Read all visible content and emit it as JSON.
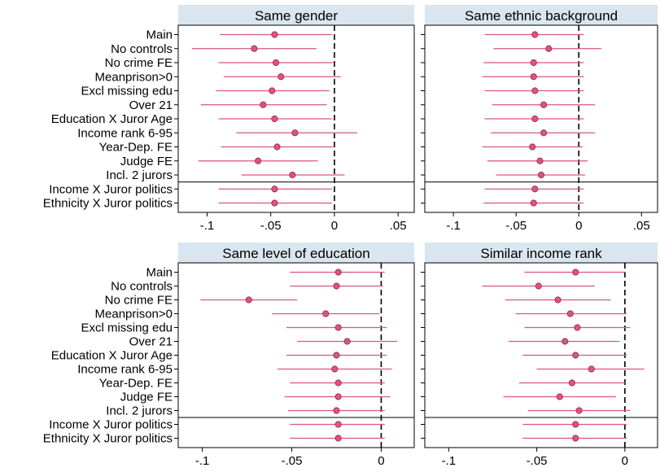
{
  "row_labels": [
    "Main",
    "No controls",
    "No crime FE",
    "Meanprison>0",
    "Excl missing edu",
    "Over 21",
    "Education X Juror Age",
    "Income rank 6-95",
    "Year-Dep. FE",
    "Judge FE",
    "Incl. 2 jurors",
    "Income X Juror politics",
    "Ethnicity X Juror politics"
  ],
  "colors": {
    "point": "#d9577c",
    "point_stroke": "#a8304f",
    "ci": "#d9577c",
    "header_bg": "#d9e6ef",
    "zero_line": "#000000",
    "sep_line": "#000000"
  },
  "chart_data": [
    {
      "type": "scatter",
      "title": "Same gender",
      "xlim": [
        -0.115,
        0.055
      ],
      "xticks": [
        -0.1,
        -0.05,
        0,
        0.05
      ],
      "xtick_labels": [
        "-.1",
        "-.05",
        "0",
        ".05"
      ],
      "estimates": [
        -0.047,
        -0.063,
        -0.046,
        -0.042,
        -0.049,
        -0.056,
        -0.047,
        -0.031,
        -0.045,
        -0.06,
        -0.033,
        -0.047,
        -0.047
      ],
      "ci_low": [
        -0.09,
        -0.112,
        -0.091,
        -0.087,
        -0.093,
        -0.105,
        -0.091,
        -0.077,
        -0.089,
        -0.107,
        -0.073,
        -0.091,
        -0.091
      ],
      "ci_high": [
        -0.002,
        -0.014,
        -0.001,
        0.005,
        -0.004,
        -0.006,
        -0.002,
        0.018,
        -0.001,
        -0.013,
        0.008,
        -0.002,
        -0.002
      ]
    },
    {
      "type": "scatter",
      "title": "Same ethnic background",
      "xlim": [
        -0.115,
        0.055
      ],
      "xticks": [
        -0.1,
        -0.05,
        0,
        0.05
      ],
      "xtick_labels": [
        "-.1",
        "-.05",
        "0",
        ".05"
      ],
      "estimates": [
        -0.035,
        -0.024,
        -0.036,
        -0.036,
        -0.035,
        -0.028,
        -0.035,
        -0.028,
        -0.037,
        -0.031,
        -0.03,
        -0.035,
        -0.036
      ],
      "ci_low": [
        -0.075,
        -0.068,
        -0.076,
        -0.077,
        -0.075,
        -0.069,
        -0.075,
        -0.07,
        -0.077,
        -0.073,
        -0.066,
        -0.075,
        -0.076
      ],
      "ci_high": [
        0.004,
        0.018,
        0.004,
        0.004,
        0.004,
        0.013,
        0.004,
        0.013,
        0.003,
        0.007,
        0.005,
        0.004,
        0.004
      ]
    },
    {
      "type": "scatter",
      "title": "Same level of education",
      "xlim": [
        -0.108,
        0.013
      ],
      "xticks": [
        -0.1,
        -0.05,
        0
      ],
      "xtick_labels": [
        "-.1",
        "-.05",
        "0"
      ],
      "estimates": [
        -0.024,
        -0.025,
        -0.074,
        -0.031,
        -0.024,
        -0.019,
        -0.025,
        -0.026,
        -0.024,
        -0.024,
        -0.025,
        -0.024,
        -0.024
      ],
      "ci_low": [
        -0.051,
        -0.051,
        -0.101,
        -0.061,
        -0.053,
        -0.047,
        -0.053,
        -0.058,
        -0.051,
        -0.054,
        -0.052,
        -0.051,
        -0.051
      ],
      "ci_high": [
        0.002,
        0.001,
        -0.047,
        -0.001,
        0.003,
        0.009,
        0.003,
        0.006,
        0.002,
        0.005,
        0.002,
        0.002,
        0.002
      ]
    },
    {
      "type": "scatter",
      "title": "Similar income rank",
      "xlim": [
        -0.108,
        0.013
      ],
      "xticks": [
        -0.1,
        -0.05,
        0
      ],
      "xtick_labels": [
        "-.1",
        "-.05",
        "0"
      ],
      "estimates": [
        -0.028,
        -0.049,
        -0.038,
        -0.031,
        -0.027,
        -0.034,
        -0.028,
        -0.019,
        -0.03,
        -0.037,
        -0.026,
        -0.028,
        -0.028
      ],
      "ci_low": [
        -0.057,
        -0.081,
        -0.068,
        -0.062,
        -0.057,
        -0.066,
        -0.058,
        -0.05,
        -0.06,
        -0.069,
        -0.055,
        -0.058,
        -0.058
      ],
      "ci_high": [
        0.0,
        -0.017,
        -0.008,
        0.001,
        0.003,
        -0.003,
        0.001,
        0.011,
        0.0,
        -0.005,
        0.003,
        0.001,
        0.001
      ]
    }
  ]
}
